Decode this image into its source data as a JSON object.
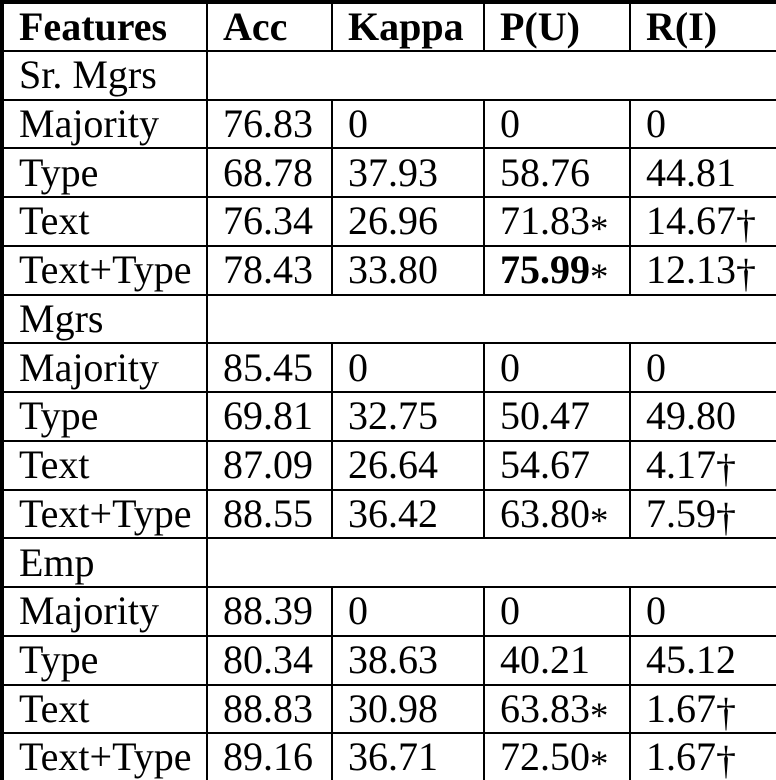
{
  "colors": {
    "text": "#000000",
    "border": "#000000",
    "background": "#ffffff"
  },
  "markers": {
    "significance_star": "*",
    "significance_dagger": "†"
  },
  "table": {
    "columns": [
      "Features",
      "Acc",
      "Kappa",
      "P(U)",
      "R(I)"
    ],
    "sections": [
      {
        "label": "Sr. Mgrs",
        "rows": [
          {
            "feature": "Majority",
            "cells": [
              {
                "v": "76.83"
              },
              {
                "v": "0"
              },
              {
                "v": "0"
              },
              {
                "v": "0"
              }
            ]
          },
          {
            "feature": "Type",
            "cells": [
              {
                "v": "68.78"
              },
              {
                "v": "37.93"
              },
              {
                "v": "58.76"
              },
              {
                "v": "44.81"
              }
            ]
          },
          {
            "feature": "Text",
            "cells": [
              {
                "v": "76.34"
              },
              {
                "v": "26.96"
              },
              {
                "v": "71.83",
                "m": "*"
              },
              {
                "v": "14.67",
                "m": "†"
              }
            ]
          },
          {
            "feature": "Text+Type",
            "cells": [
              {
                "v": "78.43"
              },
              {
                "v": "33.80"
              },
              {
                "v": "75.99",
                "m": "*",
                "bold": true
              },
              {
                "v": "12.13",
                "m": "†"
              }
            ]
          }
        ]
      },
      {
        "label": "Mgrs",
        "rows": [
          {
            "feature": "Majority",
            "cells": [
              {
                "v": "85.45"
              },
              {
                "v": "0"
              },
              {
                "v": "0"
              },
              {
                "v": "0"
              }
            ]
          },
          {
            "feature": "Type",
            "cells": [
              {
                "v": "69.81"
              },
              {
                "v": "32.75"
              },
              {
                "v": "50.47"
              },
              {
                "v": "49.80"
              }
            ]
          },
          {
            "feature": "Text",
            "cells": [
              {
                "v": "87.09"
              },
              {
                "v": "26.64"
              },
              {
                "v": "54.67"
              },
              {
                "v": "4.17",
                "m": "†"
              }
            ]
          },
          {
            "feature": "Text+Type",
            "cells": [
              {
                "v": "88.55"
              },
              {
                "v": "36.42"
              },
              {
                "v": "63.80",
                "m": "*"
              },
              {
                "v": "7.59",
                "m": "†"
              }
            ]
          }
        ]
      },
      {
        "label": "Emp",
        "rows": [
          {
            "feature": "Majority",
            "cells": [
              {
                "v": "88.39"
              },
              {
                "v": "0"
              },
              {
                "v": "0"
              },
              {
                "v": "0"
              }
            ]
          },
          {
            "feature": "Type",
            "cells": [
              {
                "v": "80.34"
              },
              {
                "v": "38.63"
              },
              {
                "v": "40.21"
              },
              {
                "v": "45.12"
              }
            ]
          },
          {
            "feature": "Text",
            "cells": [
              {
                "v": "88.83"
              },
              {
                "v": "30.98"
              },
              {
                "v": "63.83",
                "m": "*"
              },
              {
                "v": "1.67",
                "m": "†"
              }
            ]
          },
          {
            "feature": "Text+Type",
            "cells": [
              {
                "v": "89.16"
              },
              {
                "v": "36.71"
              },
              {
                "v": "72.50",
                "m": "*"
              },
              {
                "v": "1.67",
                "m": "†"
              }
            ]
          }
        ]
      }
    ]
  }
}
